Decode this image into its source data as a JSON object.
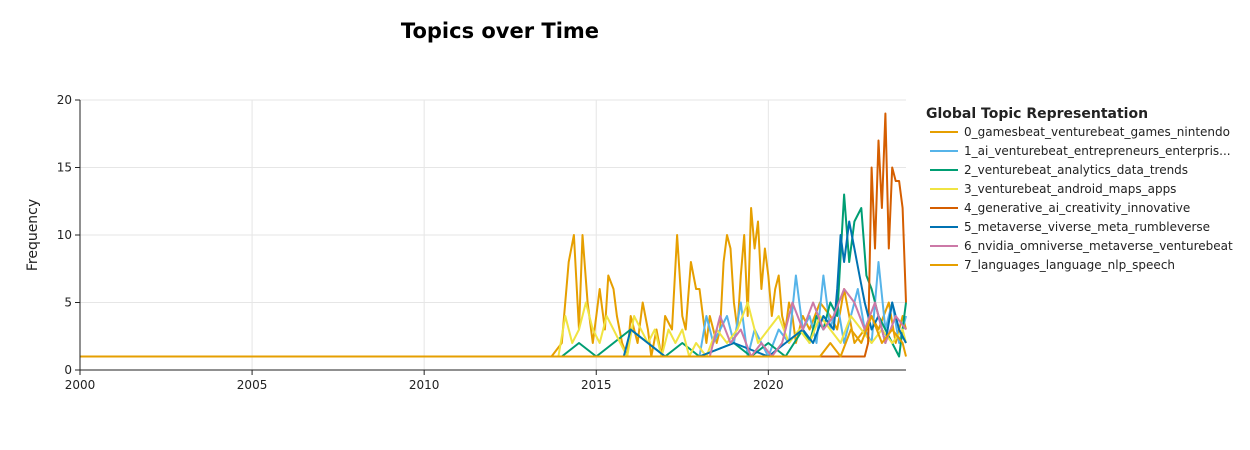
{
  "chart_data": {
    "type": "line",
    "title": "Topics over Time",
    "xlabel": "",
    "ylabel": "Frequency",
    "xlim": [
      2000,
      2024
    ],
    "ylim": [
      0,
      20
    ],
    "x_ticks": [
      2000,
      2005,
      2010,
      2015,
      2020
    ],
    "y_ticks": [
      0,
      5,
      10,
      15,
      20
    ],
    "grid": true,
    "legend_title": "Global Topic Representation",
    "legend_position": "right",
    "series": [
      {
        "name": "0_gamesbeat_venturebeat_games_nintendo",
        "color": "#E69F00",
        "x": [
          2000,
          2013.7,
          2014.0,
          2014.2,
          2014.35,
          2014.5,
          2014.6,
          2014.75,
          2014.9,
          2015.0,
          2015.1,
          2015.25,
          2015.35,
          2015.5,
          2015.6,
          2015.75,
          2015.9,
          2016.0,
          2016.2,
          2016.35,
          2016.5,
          2016.6,
          2016.75,
          2016.9,
          2017.0,
          2017.2,
          2017.35,
          2017.5,
          2017.6,
          2017.75,
          2017.9,
          2018.0,
          2018.1,
          2018.2,
          2018.3,
          2018.4,
          2018.5,
          2018.6,
          2018.7,
          2018.8,
          2018.9,
          2019.0,
          2019.1,
          2019.2,
          2019.3,
          2019.4,
          2019.5,
          2019.6,
          2019.7,
          2019.8,
          2019.9,
          2020.0,
          2020.1,
          2020.2,
          2020.3,
          2020.4,
          2020.5,
          2020.6,
          2020.7,
          2020.8,
          2020.9,
          2021.0,
          2021.2,
          2021.5,
          2021.8,
          2022.0,
          2022.2,
          2022.5,
          2022.8,
          2023.0,
          2023.2,
          2023.5,
          2023.7,
          2023.9,
          2024.0
        ],
        "y": [
          1,
          1,
          2,
          8,
          10,
          3,
          10,
          5,
          2,
          4,
          6,
          3,
          7,
          6,
          4,
          2,
          1,
          4,
          2,
          5,
          3,
          1,
          3,
          1,
          4,
          3,
          10,
          4,
          3,
          8,
          6,
          6,
          4,
          2,
          4,
          3,
          2,
          3,
          8,
          10,
          9,
          5,
          3,
          7,
          10,
          4,
          12,
          9,
          11,
          6,
          9,
          7,
          4,
          6,
          7,
          4,
          3,
          5,
          4,
          2,
          3,
          4,
          3,
          5,
          4,
          3,
          6,
          2,
          3,
          4,
          3,
          5,
          2,
          4,
          3
        ]
      },
      {
        "name": "1_ai_venturebeat_entrepreneurs_enterpris...",
        "color": "#56B4E9",
        "x": [
          2000,
          2018.0,
          2018.2,
          2018.4,
          2018.6,
          2018.8,
          2019.0,
          2019.2,
          2019.4,
          2019.6,
          2019.8,
          2020.0,
          2020.3,
          2020.6,
          2020.8,
          2021.0,
          2021.2,
          2021.4,
          2021.6,
          2021.8,
          2022.0,
          2022.2,
          2022.4,
          2022.6,
          2022.8,
          2023.0,
          2023.2,
          2023.4,
          2023.6,
          2023.8,
          2024.0
        ],
        "y": [
          1,
          1,
          4,
          2,
          3,
          4,
          2,
          5,
          1,
          3,
          2,
          1,
          3,
          2,
          7,
          3,
          4,
          2,
          7,
          3,
          5,
          2,
          4,
          6,
          3,
          2,
          8,
          3,
          5,
          2,
          4
        ]
      },
      {
        "name": "2_venturebeat_analytics_data_trends",
        "color": "#009E73",
        "x": [
          2000,
          2013.5,
          2014.0,
          2014.5,
          2015.0,
          2015.5,
          2016.0,
          2016.5,
          2017.0,
          2017.5,
          2018.0,
          2019.0,
          2019.5,
          2020.0,
          2020.5,
          2021.0,
          2021.2,
          2021.4,
          2021.6,
          2021.8,
          2022.0,
          2022.2,
          2022.35,
          2022.5,
          2022.7,
          2022.85,
          2023.0,
          2023.2,
          2023.4,
          2023.6,
          2023.8,
          2024.0
        ],
        "y": [
          1,
          1,
          1,
          2,
          1,
          2,
          3,
          2,
          1,
          2,
          1,
          2,
          1,
          2,
          1,
          3,
          2,
          4,
          3,
          5,
          4,
          13,
          8,
          11,
          12,
          7,
          6,
          4,
          3,
          2,
          1,
          5
        ]
      },
      {
        "name": "3_venturebeat_android_maps_apps",
        "color": "#F0E442",
        "x": [
          2000,
          2013.9,
          2014.1,
          2014.3,
          2014.5,
          2014.7,
          2014.9,
          2015.1,
          2015.3,
          2015.5,
          2015.7,
          2015.9,
          2016.1,
          2016.3,
          2016.5,
          2016.7,
          2016.9,
          2017.1,
          2017.3,
          2017.5,
          2017.7,
          2017.9,
          2018.2,
          2018.5,
          2018.8,
          2019.1,
          2019.4,
          2019.7,
          2020.0,
          2020.3,
          2020.6,
          2020.9,
          2021.2,
          2021.5,
          2021.8,
          2022.1,
          2022.4,
          2022.7,
          2023.0,
          2023.3,
          2023.6,
          2023.9,
          2024.0
        ],
        "y": [
          1,
          1,
          4,
          2,
          3,
          5,
          3,
          2,
          4,
          3,
          2,
          1,
          4,
          3,
          2,
          3,
          1,
          3,
          2,
          3,
          1,
          2,
          1,
          3,
          2,
          3,
          5,
          2,
          3,
          4,
          2,
          3,
          2,
          4,
          3,
          2,
          4,
          3,
          2,
          3,
          2,
          3,
          2
        ]
      },
      {
        "name": "4_generative_ai_creativity_innovative",
        "color": "#D55E00",
        "x": [
          2000,
          2022.8,
          2022.9,
          2023.0,
          2023.1,
          2023.2,
          2023.3,
          2023.4,
          2023.5,
          2023.6,
          2023.7,
          2023.8,
          2023.9,
          2024.0
        ],
        "y": [
          1,
          1,
          2,
          15,
          9,
          17,
          12,
          19,
          9,
          15,
          14,
          14,
          12,
          5
        ]
      },
      {
        "name": "5_metaverse_viverse_meta_rumbleverse",
        "color": "#0072B2",
        "x": [
          2000,
          2015.8,
          2016.0,
          2016.5,
          2017.0,
          2017.5,
          2018.0,
          2019.0,
          2020.0,
          2020.5,
          2021.0,
          2021.3,
          2021.6,
          2021.9,
          2022.0,
          2022.1,
          2022.2,
          2022.35,
          2022.5,
          2022.65,
          2022.8,
          2023.0,
          2023.2,
          2023.4,
          2023.6,
          2023.8,
          2024.0
        ],
        "y": [
          1,
          1,
          3,
          2,
          1,
          1,
          1,
          2,
          1,
          2,
          3,
          2,
          4,
          3,
          6,
          10,
          8,
          11,
          9,
          7,
          5,
          3,
          4,
          2,
          5,
          3,
          2
        ]
      },
      {
        "name": "6_nvidia_omniverse_metaverse_venturebeat",
        "color": "#CC79A7",
        "x": [
          2000,
          2018.3,
          2018.6,
          2018.9,
          2019.2,
          2019.5,
          2019.8,
          2020.1,
          2020.4,
          2020.7,
          2021.0,
          2021.3,
          2021.6,
          2021.9,
          2022.2,
          2022.5,
          2022.8,
          2023.1,
          2023.4,
          2023.7,
          2024.0
        ],
        "y": [
          1,
          1,
          4,
          2,
          3,
          1,
          2,
          1,
          2,
          5,
          3,
          5,
          3,
          4,
          6,
          5,
          3,
          5,
          2,
          4,
          3
        ]
      },
      {
        "name": "7_languages_language_nlp_speech",
        "color": "#E69F00",
        "x": [
          2000,
          2021.5,
          2021.8,
          2022.1,
          2022.4,
          2022.7,
          2023.0,
          2023.3,
          2023.6,
          2023.9,
          2024.0
        ],
        "y": [
          1,
          1,
          2,
          1,
          3,
          2,
          4,
          2,
          3,
          2,
          1
        ]
      }
    ]
  }
}
